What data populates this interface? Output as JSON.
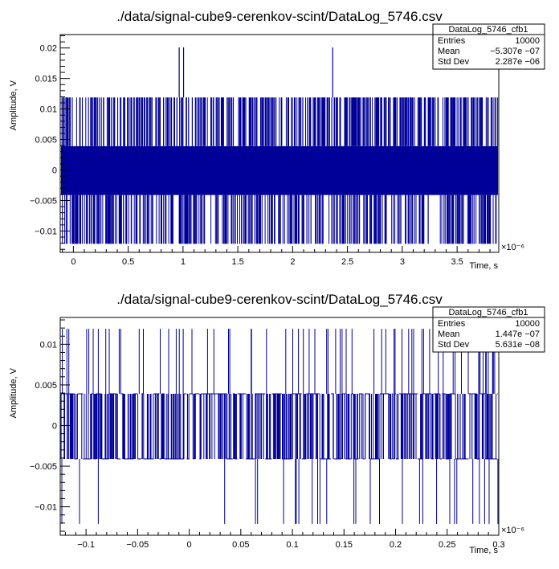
{
  "colors": {
    "trace": "#000099",
    "frame": "#000000",
    "background": "#ffffff"
  },
  "chart_data": [
    {
      "type": "line",
      "title": "./data/signal-cube9-cerenkov-scint/DataLog_5746.csv",
      "xlabel": "Time, s",
      "ylabel": "Amplitude, V",
      "x_multiplier": "×10⁻⁶",
      "xlim": [
        -0.12,
        3.88
      ],
      "ylim": [
        -0.0135,
        0.0222
      ],
      "xticks": [
        0,
        0.5,
        1,
        1.5,
        2,
        2.5,
        3,
        3.5
      ],
      "xtick_labels": [
        "0",
        "0.5",
        "1",
        "1.5",
        "2",
        "2.5",
        "3",
        "3.5"
      ],
      "yticks": [
        -0.01,
        -0.005,
        0,
        0.005,
        0.01,
        0.015,
        0.02
      ],
      "ytick_labels": [
        "−0.01",
        "−0.005",
        "0",
        "0.005",
        "0.01",
        "0.015",
        "0.02"
      ],
      "levels": [
        -0.0121,
        -0.0041,
        0.0039,
        0.0119
      ],
      "spikes_x": [
        0.965,
        1.005,
        2.365
      ],
      "spike_value": 0.0201,
      "series": [
        {
          "values_note_levels": [
            -0.0121,
            -0.0041,
            0.0039,
            0.0119
          ]
        }
      ],
      "stats": {
        "title": "DataLog_5746_cfb1",
        "rows": [
          {
            "label": "Entries",
            "value": "10000"
          },
          {
            "label": "Mean",
            "value": "−5.307e −07"
          },
          {
            "label": "Std Dev",
            "value": "2.287e −06"
          }
        ]
      }
    },
    {
      "type": "line",
      "title": "./data/signal-cube9-cerenkov-scint/DataLog_5746.csv",
      "xlabel": "Time, s",
      "ylabel": "Amplitude, V",
      "x_multiplier": "×10⁻⁶",
      "xlim": [
        -0.125,
        0.3
      ],
      "ylim": [
        -0.0135,
        0.0133
      ],
      "xticks": [
        -0.1,
        -0.05,
        0,
        0.05,
        0.1,
        0.15,
        0.2,
        0.25,
        0.3
      ],
      "xtick_labels": [
        "−0.1",
        "−0.05",
        "0",
        "0.05",
        "0.1",
        "0.15",
        "0.2",
        "0.25",
        "0.3"
      ],
      "yticks": [
        -0.01,
        -0.005,
        0,
        0.005,
        0.01
      ],
      "ytick_labels": [
        "−0.01",
        "−0.005",
        "0",
        "0.005",
        "0.01"
      ],
      "levels": [
        -0.0121,
        -0.0041,
        0.0039,
        0.0119
      ],
      "stats": {
        "title": "DataLog_5746_cfb1",
        "rows": [
          {
            "label": "Entries",
            "value": "10000"
          },
          {
            "label": "Mean",
            "value": "1.447e −07"
          },
          {
            "label": "Std Dev",
            "value": "5.631e −08"
          }
        ]
      }
    }
  ]
}
